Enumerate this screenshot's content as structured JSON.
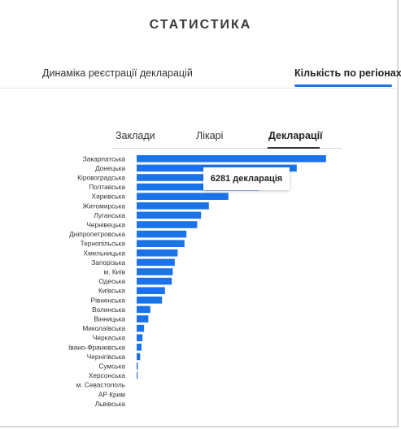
{
  "header": {
    "title": "СТАТИСТИКА"
  },
  "main_tabs": [
    {
      "label": "Динаміка реєстрації декларацій"
    },
    {
      "label": "Кількість по регіонах"
    }
  ],
  "sub_tabs": [
    {
      "label": "Заклади"
    },
    {
      "label": "Лікарі"
    },
    {
      "label": "Декларації"
    }
  ],
  "tooltip": {
    "text": "6281 декларація"
  },
  "colors": {
    "accent": "#1a73e8",
    "bar": "#1a73e8"
  },
  "chart_data": {
    "type": "bar",
    "orientation": "horizontal",
    "xlim": [
      0,
      10000
    ],
    "categories": [
      "Закарпатська",
      "Донецька",
      "Кіровоградська",
      "Полтавська",
      "Харківська",
      "Житомирська",
      "Луганська",
      "Чернівецька",
      "Дніпропетровська",
      "Тернопільська",
      "Хмельницька",
      "Запорізька",
      "м. Київ",
      "Одеська",
      "Київська",
      "Рівненська",
      "Волинська",
      "Вінницька",
      "Миколаївська",
      "Черкаська",
      "Івано-Франківська",
      "Чернігівська",
      "Сумська",
      "Херсонська",
      "м. Севастополь",
      "АР Крим",
      "Львівська"
    ],
    "values": [
      9700,
      8200,
      7600,
      6281,
      4700,
      3700,
      3300,
      3100,
      2550,
      2450,
      2100,
      1950,
      1850,
      1800,
      1450,
      1300,
      700,
      600,
      380,
      300,
      250,
      180,
      60,
      40,
      0,
      0,
      0
    ]
  }
}
